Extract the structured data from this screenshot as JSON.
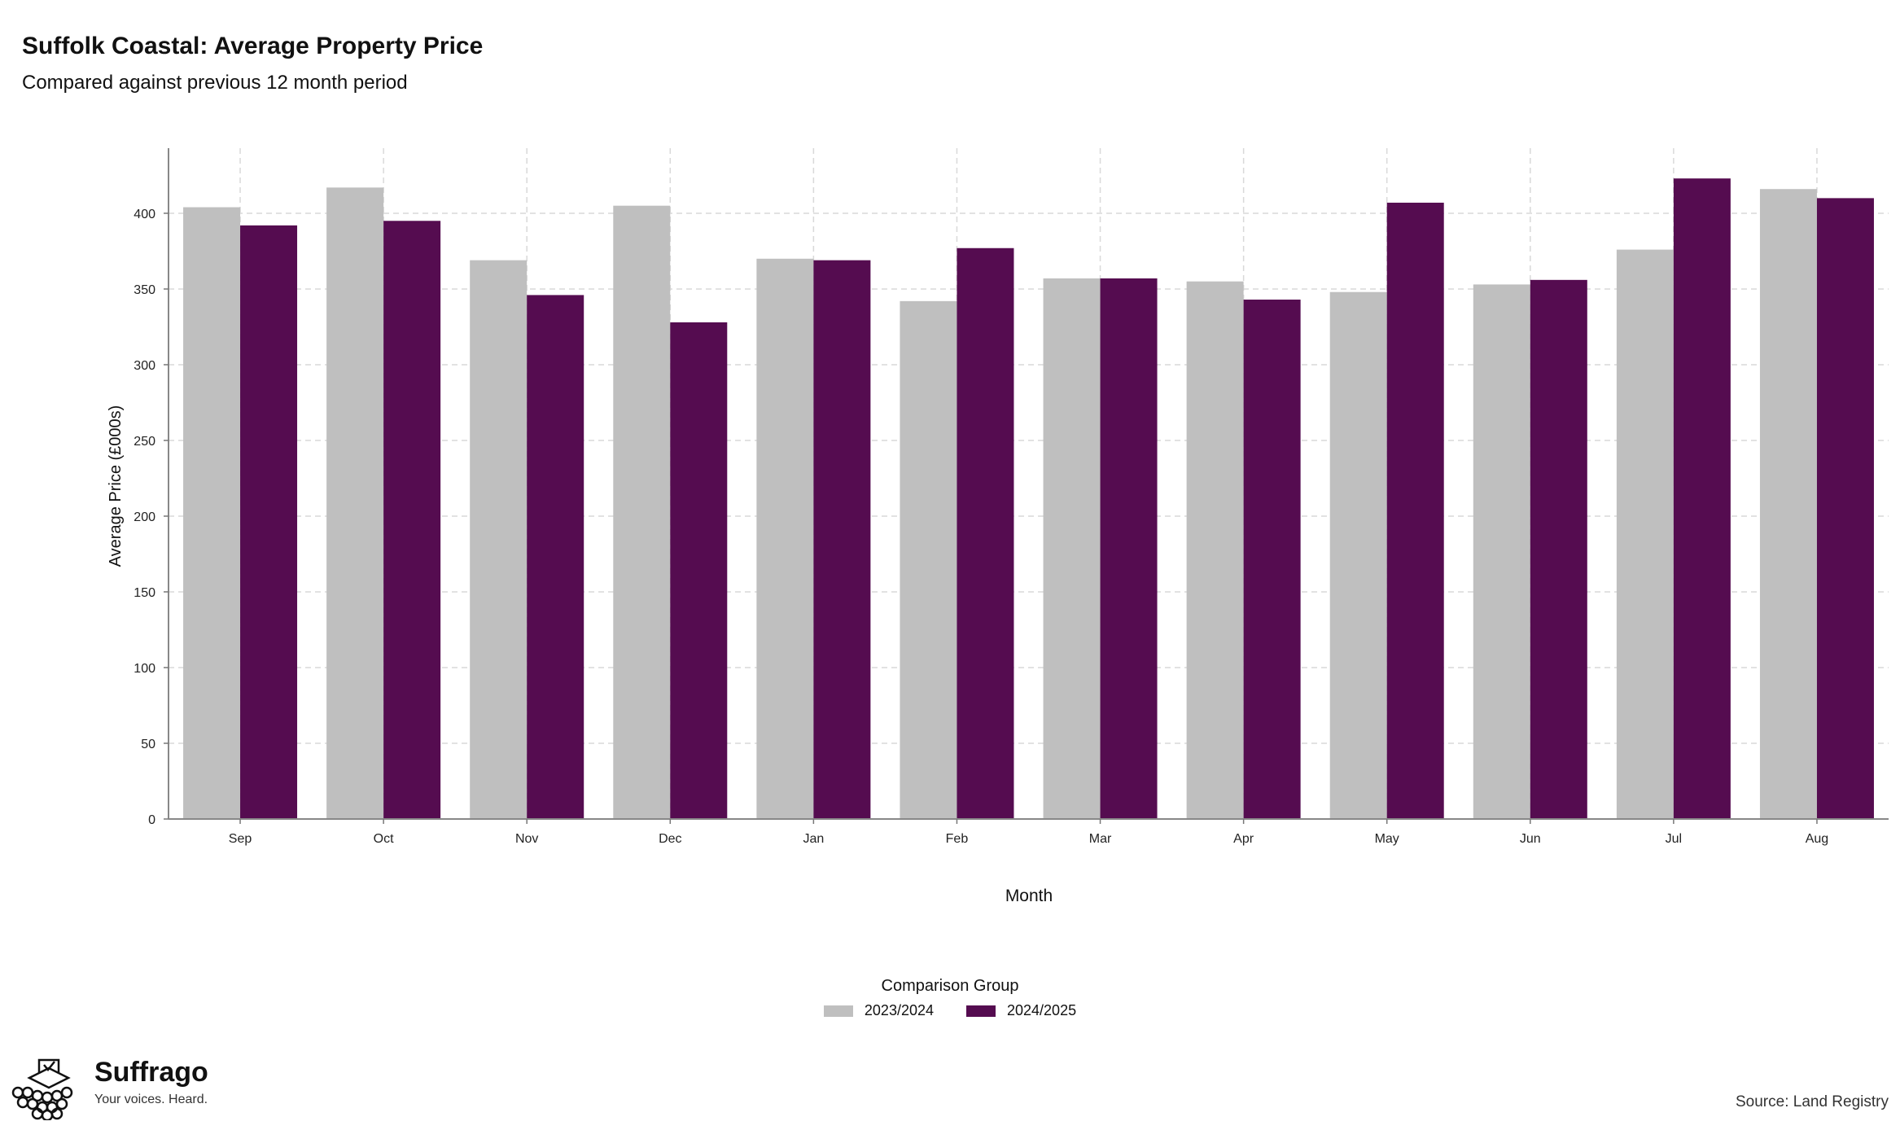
{
  "title": "Suffolk Coastal: Average Property Price",
  "subtitle": "Compared against previous 12 month period",
  "chart_data": {
    "type": "bar",
    "categories": [
      "Sep",
      "Oct",
      "Nov",
      "Dec",
      "Jan",
      "Feb",
      "Mar",
      "Apr",
      "May",
      "Jun",
      "Jul",
      "Aug"
    ],
    "series": [
      {
        "name": "2023/2024",
        "color": "#bfbfbf",
        "values": [
          404,
          417,
          369,
          405,
          370,
          342,
          357,
          355,
          348,
          353,
          376,
          416
        ]
      },
      {
        "name": "2024/2025",
        "color": "#550c50",
        "values": [
          392,
          395,
          346,
          328,
          369,
          377,
          357,
          343,
          407,
          356,
          423,
          410
        ]
      }
    ],
    "xlabel": "Month",
    "ylabel": "Average Price (£000s)",
    "ylim": [
      0,
      443
    ],
    "yticks": [
      0,
      50,
      100,
      150,
      200,
      250,
      300,
      350,
      400
    ],
    "grid": true,
    "legend_title": "Comparison Group",
    "legend_position": "bottom"
  },
  "logo": {
    "name": "Suffrago",
    "tagline": "Your voices. Heard."
  },
  "source": "Source: Land Registry"
}
